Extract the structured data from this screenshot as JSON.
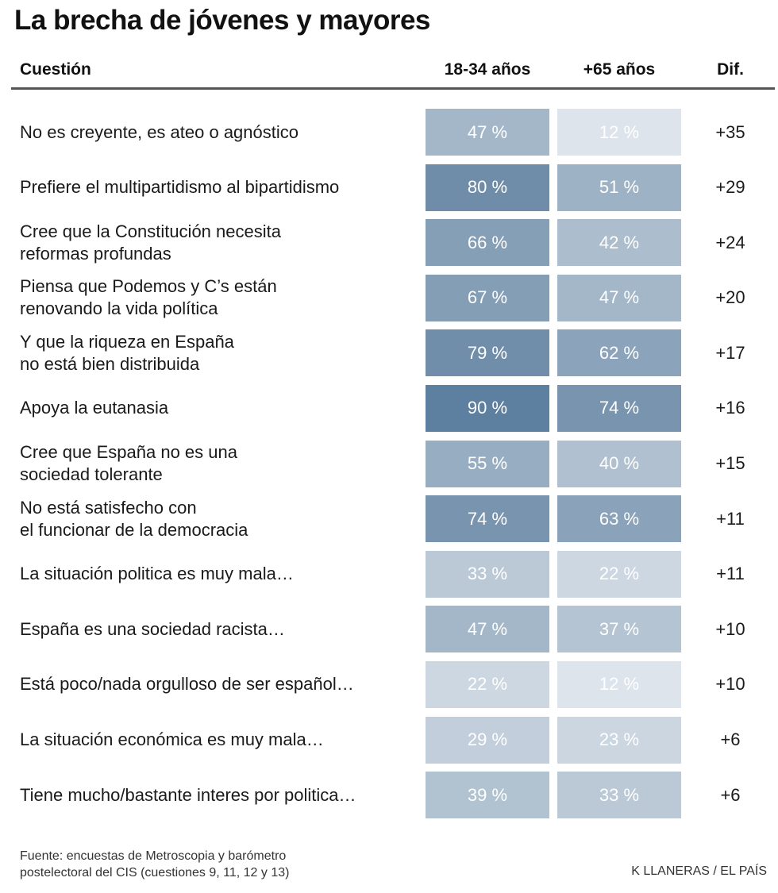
{
  "title": "La brecha de jóvenes y mayores",
  "headers": {
    "question": "Cuestión",
    "young": "18-34 años",
    "old": "+65 años",
    "diff": "Dif."
  },
  "chart_data": {
    "type": "table",
    "title": "La brecha de jóvenes y mayores",
    "columns": [
      "Cuestión",
      "18-34 años",
      "+65 años",
      "Dif."
    ],
    "value_range": [
      0,
      100
    ],
    "colors": {
      "base": "#ffffff",
      "full": "#4e7396"
    },
    "rows": [
      {
        "question": "No es creyente, es ateo o agnóstico",
        "young": 47,
        "young_label": "47 %",
        "old": 12,
        "old_label": "12 %",
        "diff": "+35"
      },
      {
        "question": "Prefiere el multipartidismo al bipartidismo",
        "young": 80,
        "young_label": "80 %",
        "old": 51,
        "old_label": "51 %",
        "diff": "+29"
      },
      {
        "question": "Cree que la Constitución necesita\nreformas profundas",
        "young": 66,
        "young_label": "66 %",
        "old": 42,
        "old_label": "42 %",
        "diff": "+24"
      },
      {
        "question": "Piensa que Podemos y C’s están\nrenovando la vida política",
        "young": 67,
        "young_label": "67 %",
        "old": 47,
        "old_label": "47 %",
        "diff": "+20"
      },
      {
        "question": "Y que la riqueza en España\nno está bien distribuida",
        "young": 79,
        "young_label": "79 %",
        "old": 62,
        "old_label": "62 %",
        "diff": "+17"
      },
      {
        "question": "Apoya la eutanasia",
        "young": 90,
        "young_label": "90 %",
        "old": 74,
        "old_label": "74 %",
        "diff": "+16"
      },
      {
        "question": "Cree que España no es una\nsociedad tolerante",
        "young": 55,
        "young_label": "55 %",
        "old": 40,
        "old_label": "40 %",
        "diff": "+15"
      },
      {
        "question": "No está satisfecho con\nel funcionar de la democracia",
        "young": 74,
        "young_label": "74 %",
        "old": 63,
        "old_label": "63 %",
        "diff": "+11"
      },
      {
        "question": "La situación politica es muy mala…",
        "young": 33,
        "young_label": "33 %",
        "old": 22,
        "old_label": "22 %",
        "diff": "+11"
      },
      {
        "question": "España es una sociedad racista…",
        "young": 47,
        "young_label": "47 %",
        "old": 37,
        "old_label": "37 %",
        "diff": "+10"
      },
      {
        "question": "Está poco/nada orgulloso de ser español…",
        "young": 22,
        "young_label": "22 %",
        "old": 12,
        "old_label": "12 %",
        "diff": "+10"
      },
      {
        "question": "La situación económica es muy mala…",
        "young": 29,
        "young_label": "29 %",
        "old": 23,
        "old_label": "23 %",
        "diff": "+6"
      },
      {
        "question": "Tiene mucho/bastante interes por politica…",
        "young": 39,
        "young_label": "39 %",
        "old": 33,
        "old_label": "33 %",
        "diff": "+6"
      }
    ]
  },
  "footer": {
    "source": "Fuente: encuestas de Metroscopia y barómetro\npostelectoral del CIS (cuestiones 9, 11, 12 y 13)",
    "credit": "K LLANERAS / EL PAÍS"
  }
}
